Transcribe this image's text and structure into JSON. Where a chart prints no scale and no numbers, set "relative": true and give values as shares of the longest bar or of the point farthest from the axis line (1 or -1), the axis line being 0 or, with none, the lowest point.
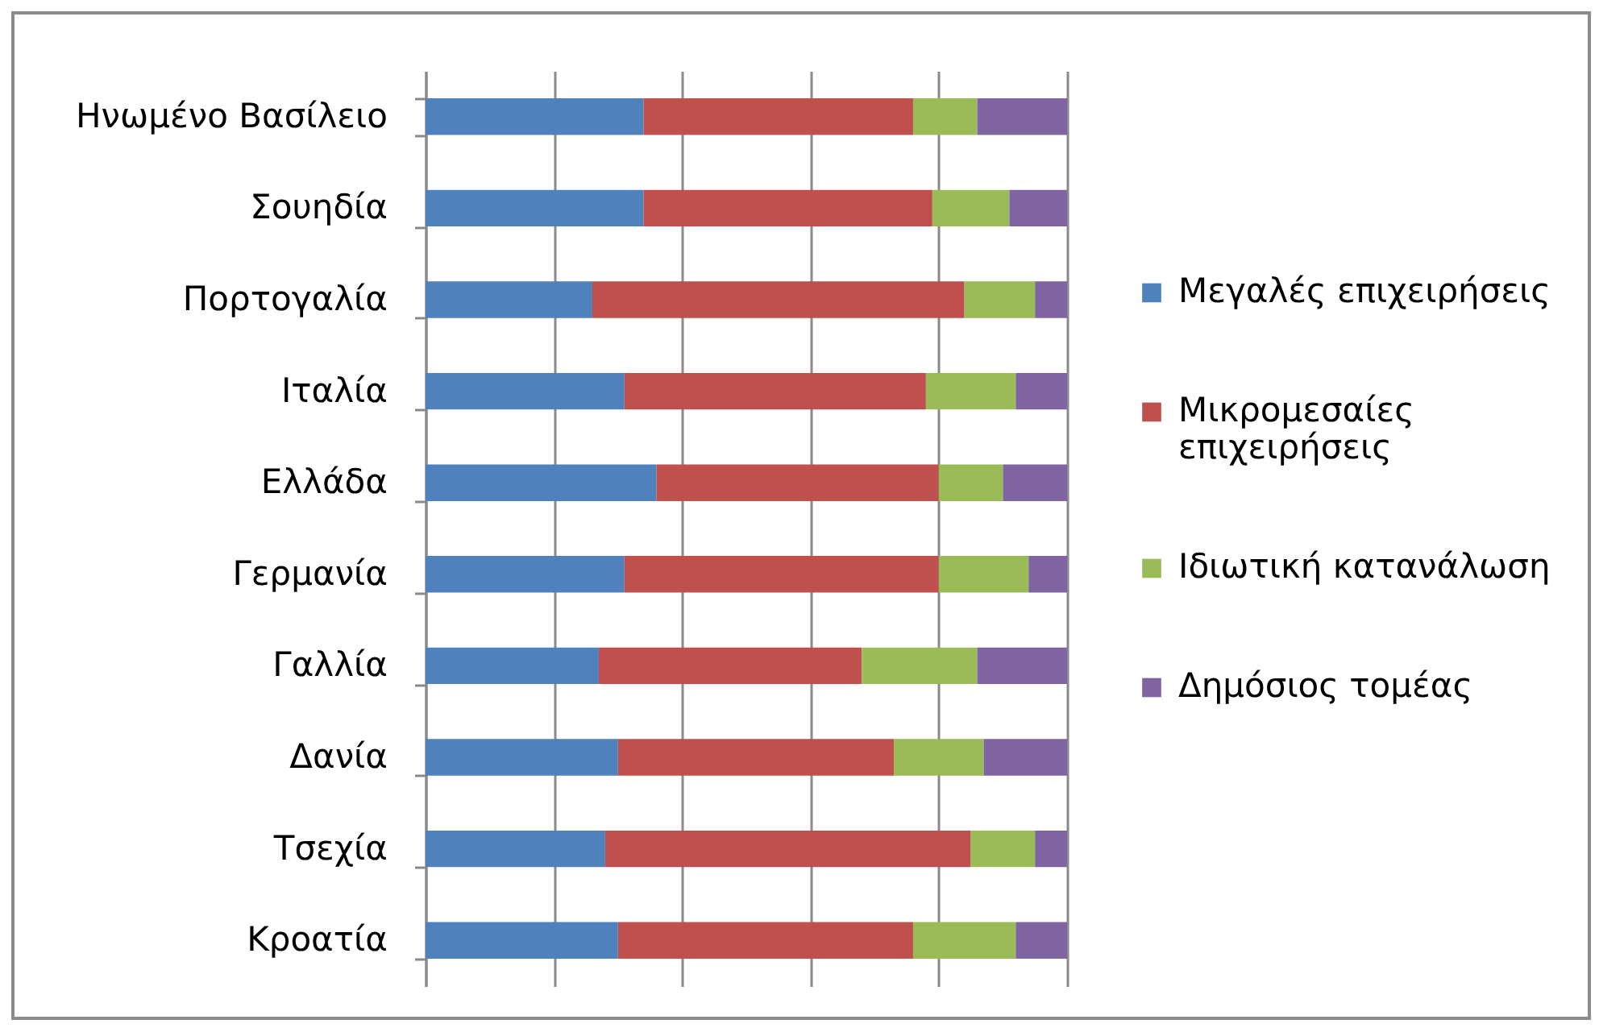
{
  "chart_data": {
    "type": "bar",
    "orientation": "horizontal",
    "stacked": true,
    "relative": true,
    "categories": [
      "Ηνωμένο Βασίλειο",
      "Σουηδία",
      "Πορτογαλία",
      "Ιταλία",
      "Ελλάδα",
      "Γερμανία",
      "Γαλλία",
      "Δανία",
      "Τσεχία",
      "Κροατία"
    ],
    "series": [
      {
        "name": "Μεγαλές επιχειρήσεις",
        "color": "#4f81bd",
        "values": [
          0.34,
          0.34,
          0.26,
          0.31,
          0.36,
          0.31,
          0.27,
          0.3,
          0.28,
          0.3
        ]
      },
      {
        "name": "Μικρομεσαίες επιχειρήσεις",
        "color": "#c0504d",
        "values": [
          0.42,
          0.45,
          0.58,
          0.47,
          0.44,
          0.49,
          0.41,
          0.43,
          0.57,
          0.46
        ]
      },
      {
        "name": "Ιδιωτική κατανάλωση",
        "color": "#9bbb59",
        "values": [
          0.1,
          0.12,
          0.11,
          0.14,
          0.1,
          0.14,
          0.18,
          0.14,
          0.1,
          0.16
        ]
      },
      {
        "name": "Δημόσιος τομέας",
        "color": "#8064a2",
        "values": [
          0.14,
          0.09,
          0.05,
          0.08,
          0.1,
          0.06,
          0.14,
          0.13,
          0.05,
          0.08
        ]
      }
    ],
    "grid": "x",
    "legend": "right",
    "tick_labels": "y"
  }
}
